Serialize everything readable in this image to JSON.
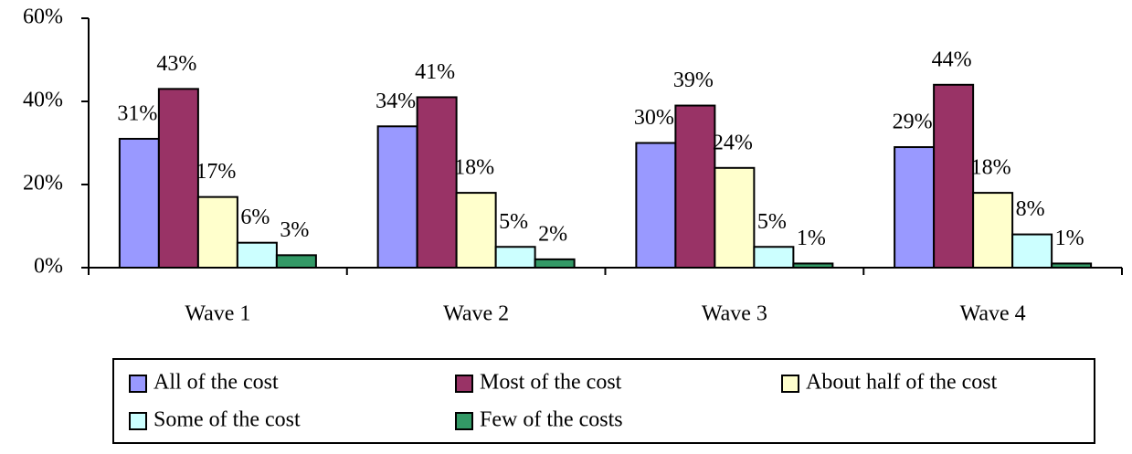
{
  "chart_data": {
    "type": "bar",
    "categories": [
      "Wave 1",
      "Wave 2",
      "Wave 3",
      "Wave 4"
    ],
    "series": [
      {
        "name": "All of the cost",
        "color": "#9999ff",
        "values": [
          31,
          34,
          30,
          29
        ],
        "value_labels": [
          "31%",
          "34%",
          "30%",
          "29%"
        ]
      },
      {
        "name": "Most of the cost",
        "color": "#993366",
        "values": [
          43,
          41,
          39,
          44
        ],
        "value_labels": [
          "43%",
          "41%",
          "39%",
          "44%"
        ]
      },
      {
        "name": "About half of the cost",
        "color": "#ffffcc",
        "values": [
          17,
          18,
          24,
          18
        ],
        "value_labels": [
          "17%",
          "18%",
          "24%",
          "18%"
        ]
      },
      {
        "name": "Some of the cost",
        "color": "#ccffff",
        "values": [
          6,
          5,
          5,
          8
        ],
        "value_labels": [
          "6%",
          "5%",
          "5%",
          "8%"
        ]
      },
      {
        "name": "Few of the costs",
        "color": "#339966",
        "values": [
          3,
          2,
          1,
          1
        ],
        "value_labels": [
          "3%",
          "2%",
          "1%",
          "1%"
        ]
      }
    ],
    "ylim": [
      0,
      60
    ],
    "yticks": [
      {
        "value": 0,
        "label": "0%"
      },
      {
        "value": 20,
        "label": "20%"
      },
      {
        "value": 40,
        "label": "40%"
      },
      {
        "value": 60,
        "label": "60%"
      }
    ],
    "grid": false,
    "legend": "bottom"
  }
}
